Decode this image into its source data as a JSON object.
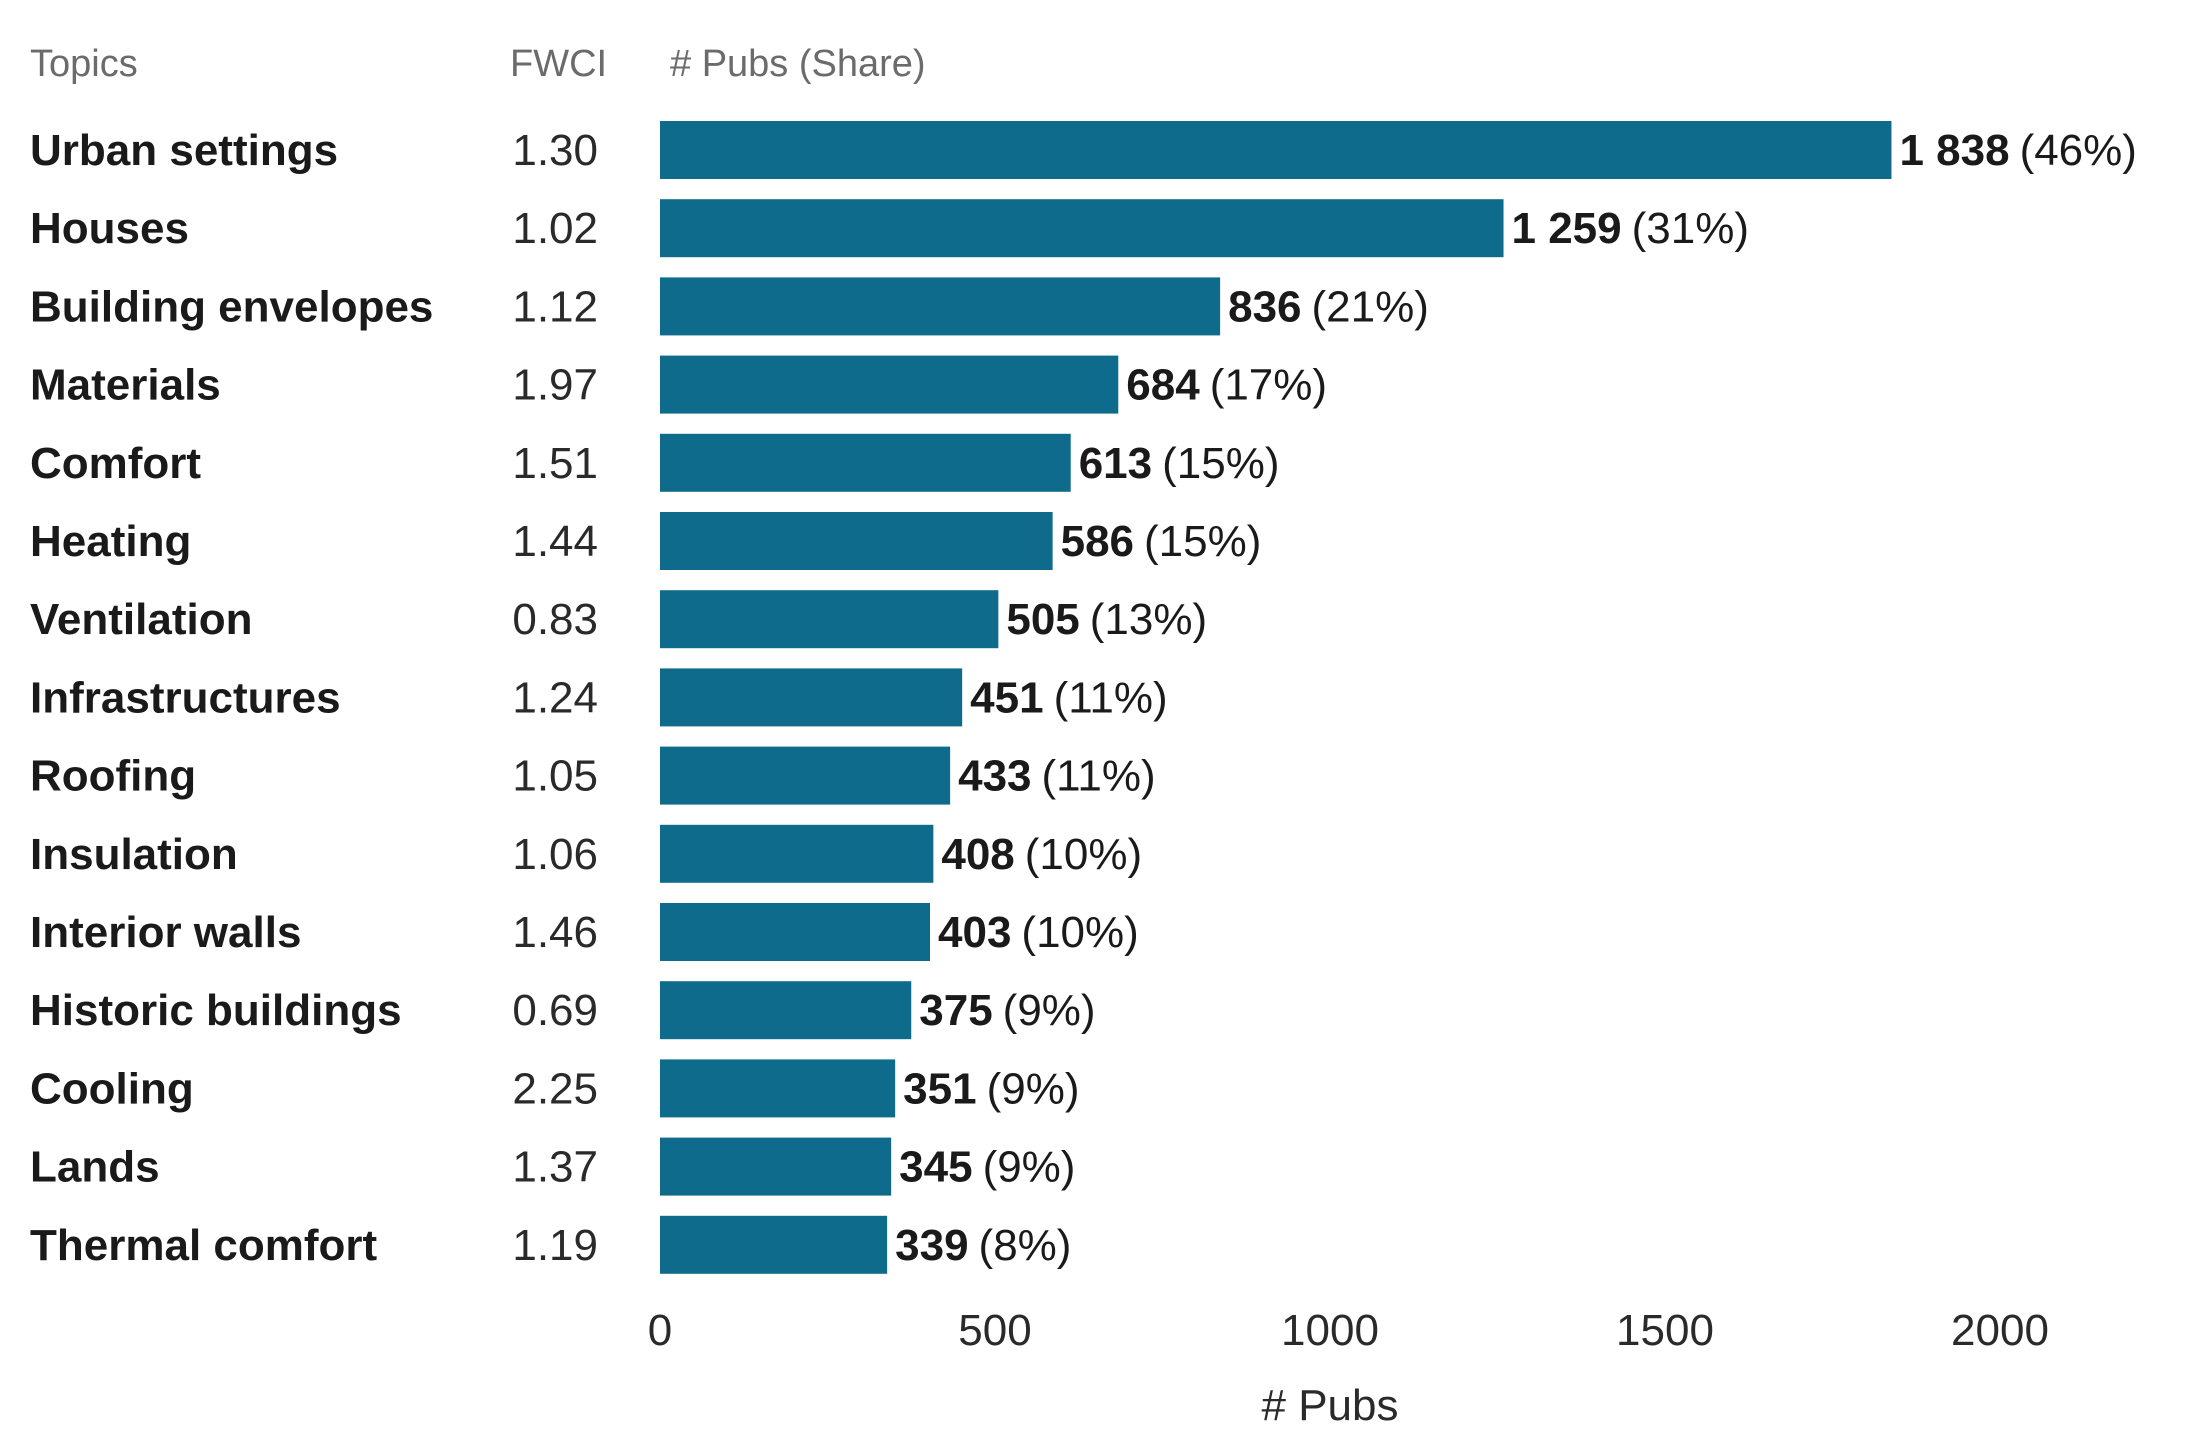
{
  "chart_data": {
    "type": "bar",
    "orientation": "horizontal",
    "headers": {
      "topics": "Topics",
      "fwci": "FWCI",
      "pubs": "# Pubs (Share)"
    },
    "categories": [
      "Urban settings",
      "Houses",
      "Building envelopes",
      "Materials",
      "Comfort",
      "Heating",
      "Ventilation",
      "Infrastructures",
      "Roofing",
      "Insulation",
      "Interior walls",
      "Historic buildings",
      "Cooling",
      "Lands",
      "Thermal comfort"
    ],
    "fwci": [
      "1.30",
      "1.02",
      "1.12",
      "1.97",
      "1.51",
      "1.44",
      "0.83",
      "1.24",
      "1.05",
      "1.06",
      "1.46",
      "0.69",
      "2.25",
      "1.37",
      "1.19"
    ],
    "values": [
      1838,
      1259,
      836,
      684,
      613,
      586,
      505,
      451,
      433,
      408,
      403,
      375,
      351,
      345,
      339
    ],
    "value_labels": [
      "1 838",
      "1 259",
      "836",
      "684",
      "613",
      "586",
      "505",
      "451",
      "433",
      "408",
      "403",
      "375",
      "351",
      "345",
      "339"
    ],
    "shares": [
      "(46%)",
      "(31%)",
      "(21%)",
      "(17%)",
      "(15%)",
      "(15%)",
      "(13%)",
      "(11%)",
      "(11%)",
      "(10%)",
      "(10%)",
      "(9%)",
      "(9%)",
      "(9%)",
      "(8%)"
    ],
    "xlabel": "# Pubs",
    "xlim": [
      0,
      2000
    ],
    "xticks": [
      0,
      500,
      1000,
      1500,
      2000
    ],
    "xtick_labels": [
      "0",
      "500",
      "1000",
      "1500",
      "2000"
    ],
    "bar_color": "#0f6b8c",
    "grid": false,
    "legend": "none"
  }
}
